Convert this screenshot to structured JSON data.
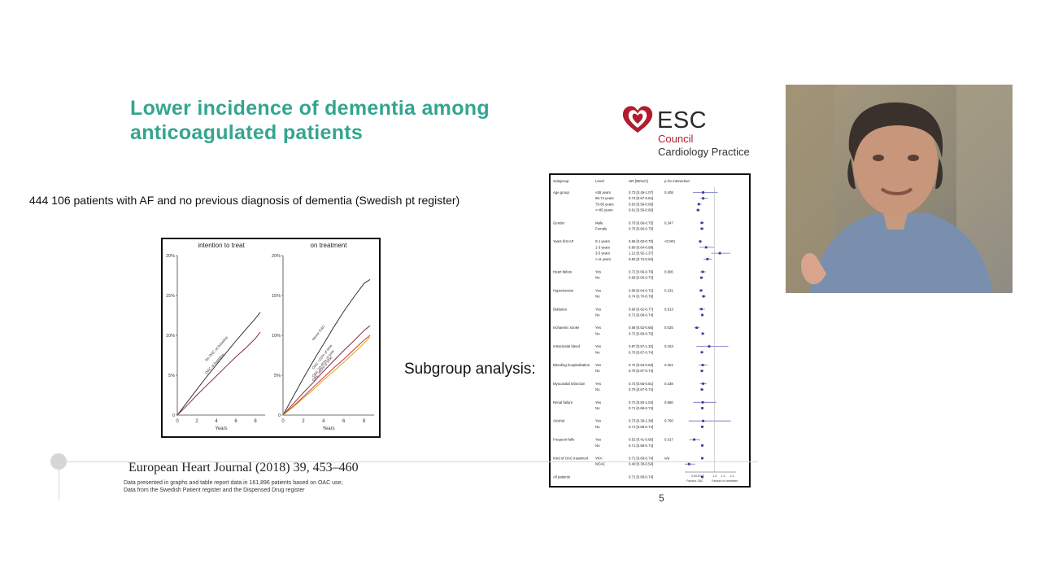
{
  "slide": {
    "title_line1": "Lower incidence of dementia among",
    "title_line2": "anticoagulated  patients",
    "patients_note": "444 106 patients with AF and no previous diagnosis of dementia (Swedish pt register)",
    "subgroup_label": "Subgroup analysis:",
    "citation": "European Heart Journal (2018) 39, 453–460",
    "footnote_line1": "Data presented in graphs and table report data in 161,896 patients based on OAC use;",
    "footnote_line2": "Data from the Swedish Patient register and the Dispensed Drug register",
    "page_number": "5",
    "colors": {
      "title": "#34a58f",
      "esc_red": "#b01d2e"
    }
  },
  "logo": {
    "word": "ESC",
    "line1": "Council",
    "line2": "Cardiology Practice",
    "icon": "heart-logo-icon"
  },
  "video": {
    "icon": "presenter-video-feed"
  },
  "chart_data": [
    {
      "type": "line",
      "title": "intention to treat",
      "xlabel": "Years",
      "xticks": [
        "0",
        "2",
        "4",
        "6",
        "8"
      ],
      "yticks": [
        "0",
        "5%",
        "10%",
        "15%",
        "20%"
      ],
      "xlim": [
        0,
        9
      ],
      "ylim": [
        0,
        20
      ],
      "series": [
        {
          "name": "No OAC at baseline",
          "color": "#333333",
          "x": [
            0,
            1,
            2,
            3,
            4,
            5,
            6,
            7,
            8,
            8.5
          ],
          "values": [
            0,
            1.6,
            3.2,
            4.8,
            6.3,
            7.8,
            9.3,
            10.7,
            12.1,
            12.9
          ]
        },
        {
          "name": "OAC at baseline",
          "color": "#8b2a3a",
          "x": [
            0,
            1,
            2,
            3,
            4,
            5,
            6,
            7,
            8,
            8.5
          ],
          "values": [
            0,
            1.2,
            2.5,
            3.7,
            4.9,
            6.1,
            7.3,
            8.4,
            9.6,
            10.4
          ]
        }
      ]
    },
    {
      "type": "line",
      "title": "on treatment",
      "xlabel": "Years",
      "xticks": [
        "0",
        "2",
        "4",
        "6",
        "8"
      ],
      "yticks": [
        "0",
        "5%",
        "10%",
        "15%",
        "20%"
      ],
      "xlim": [
        0,
        9
      ],
      "ylim": [
        0,
        20
      ],
      "series": [
        {
          "name": "Never OAC",
          "color": "#333333",
          "x": [
            0,
            1,
            2,
            3,
            4,
            5,
            6,
            7,
            8,
            8.6
          ],
          "values": [
            0,
            2.3,
            4.6,
            6.8,
            8.9,
            11,
            13,
            14.8,
            16.5,
            17
          ]
        },
        {
          "name": "OAC <20% of time",
          "color": "#8b2a3a",
          "x": [
            0,
            1,
            2,
            3,
            4,
            5,
            6,
            7,
            8,
            8.6
          ],
          "values": [
            0,
            1.4,
            2.8,
            4.1,
            5.5,
            6.8,
            8.1,
            9.3,
            10.6,
            11.2
          ]
        },
        {
          "name": "OAC 20-80% of time",
          "color": "#c0392b",
          "x": [
            0,
            1,
            2,
            3,
            4,
            5,
            6,
            7,
            8,
            8.6
          ],
          "values": [
            0,
            1.1,
            2.3,
            3.5,
            4.7,
            5.9,
            7,
            8.2,
            9.4,
            10
          ]
        },
        {
          "name": "OAC >80% of time",
          "color": "#d9a520",
          "x": [
            0,
            1,
            2,
            3,
            4,
            5,
            6,
            7,
            8,
            8.6
          ],
          "values": [
            0,
            1,
            2.1,
            3.2,
            4.4,
            5.5,
            6.6,
            7.8,
            9,
            9.8
          ]
        }
      ]
    }
  ],
  "forest": {
    "headers": [
      "Subgroup",
      "Level",
      "HR [95%CI]",
      "p for interaction"
    ],
    "axis_ticks": [
      "0.5",
      "0.6",
      "0.7",
      "1.0",
      "1.2",
      "1.4"
    ],
    "axis_labels": [
      "Favours OAC",
      "Favours no treatment"
    ],
    "xlim": [
      0.3,
      1.5
    ],
    "groups": [
      {
        "name": "Age group",
        "p": "0.408",
        "rows": [
          {
            "level": "<65 years",
            "hr": "0.73 [0.49-1.07]",
            "est": 0.73,
            "lo": 0.49,
            "hi": 1.07
          },
          {
            "level": "65-74 years",
            "hr": "0.73 [0.67-0.84]",
            "est": 0.73,
            "lo": 0.67,
            "hi": 0.84
          },
          {
            "level": "75-85 years",
            "hr": "0.63 [0.59-0.69]",
            "est": 0.63,
            "lo": 0.59,
            "hi": 0.69
          },
          {
            "level": ">=85 years",
            "hr": "0.61 [0.56-0.66]",
            "est": 0.61,
            "lo": 0.56,
            "hi": 0.66
          }
        ]
      },
      {
        "name": "Gender",
        "p": "0.347",
        "rows": [
          {
            "level": "Male",
            "hr": "0.70 [0.66-0.75]",
            "est": 0.7,
            "lo": 0.66,
            "hi": 0.75
          },
          {
            "level": "Female",
            "hr": "0.70 [0.66-0.75]",
            "est": 0.7,
            "lo": 0.66,
            "hi": 0.75
          }
        ]
      },
      {
        "name": "Years first AF",
        "p": "<0.001",
        "rows": [
          {
            "level": "0-1 years",
            "hr": "0.66 [0.63-0.70]",
            "est": 0.66,
            "lo": 0.63,
            "hi": 0.7
          },
          {
            "level": "1-3 years",
            "hr": "0.80 [0.64-0.99]",
            "est": 0.8,
            "lo": 0.64,
            "hi": 0.99
          },
          {
            "level": "3-5 years",
            "hr": "1.12 [0.92-1.37]",
            "est": 1.12,
            "lo": 0.92,
            "hi": 1.37
          },
          {
            "level": ">=5 years",
            "hr": "0.83 [0.74-0.94]",
            "est": 0.83,
            "lo": 0.74,
            "hi": 0.94
          }
        ]
      },
      {
        "name": "Heart failure",
        "p": "0.606",
        "rows": [
          {
            "level": "Yes",
            "hr": "0.72 [0.66-0.79]",
            "est": 0.72,
            "lo": 0.66,
            "hi": 0.79
          },
          {
            "level": "No",
            "hr": "0.69 [0.66-0.73]",
            "est": 0.69,
            "lo": 0.66,
            "hi": 0.73
          }
        ]
      },
      {
        "name": "Hypertension",
        "p": "0.231",
        "rows": [
          {
            "level": "Yes",
            "hr": "0.68 [0.64-0.72]",
            "est": 0.68,
            "lo": 0.64,
            "hi": 0.72
          },
          {
            "level": "No",
            "hr": "0.74 [0.70-0.79]",
            "est": 0.74,
            "lo": 0.7,
            "hi": 0.79
          }
        ]
      },
      {
        "name": "Diabetes",
        "p": "0.913",
        "rows": [
          {
            "level": "Yes",
            "hr": "0.69 [0.62-0.77]",
            "est": 0.69,
            "lo": 0.62,
            "hi": 0.77
          },
          {
            "level": "No",
            "hr": "0.71 [0.68-0.74]",
            "est": 0.71,
            "lo": 0.68,
            "hi": 0.74
          }
        ]
      },
      {
        "name": "Ischaemic stroke",
        "p": "0.025",
        "rows": [
          {
            "level": "Yes",
            "hr": "0.58 [0.52-0.65]",
            "est": 0.58,
            "lo": 0.52,
            "hi": 0.65
          },
          {
            "level": "No",
            "hr": "0.72 [0.69-0.76]",
            "est": 0.72,
            "lo": 0.69,
            "hi": 0.76
          }
        ]
      },
      {
        "name": "Intracranial bleed",
        "p": "0.153",
        "rows": [
          {
            "level": "Yes",
            "hr": "0.87 [0.57-1.32]",
            "est": 0.87,
            "lo": 0.57,
            "hi": 1.32
          },
          {
            "level": "No",
            "hr": "0.70 [0.67-0.74]",
            "est": 0.7,
            "lo": 0.67,
            "hi": 0.74
          }
        ]
      },
      {
        "name": "Bleeding hospitalization",
        "p": "0.201",
        "rows": [
          {
            "level": "Yes",
            "hr": "0.72 [0.63-0.83]",
            "est": 0.72,
            "lo": 0.63,
            "hi": 0.83
          },
          {
            "level": "No",
            "hr": "0.70 [0.67-0.74]",
            "est": 0.7,
            "lo": 0.67,
            "hi": 0.74
          }
        ]
      },
      {
        "name": "Myocardial infarction",
        "p": "0.338",
        "rows": [
          {
            "level": "Yes",
            "hr": "0.73 [0.65-0.81]",
            "est": 0.73,
            "lo": 0.65,
            "hi": 0.81
          },
          {
            "level": "No",
            "hr": "0.70 [0.67-0.74]",
            "est": 0.7,
            "lo": 0.67,
            "hi": 0.74
          }
        ]
      },
      {
        "name": "Renal failure",
        "p": "0.680",
        "rows": [
          {
            "level": "Yes",
            "hr": "0.72 [0.50-1.04]",
            "est": 0.72,
            "lo": 0.5,
            "hi": 1.04
          },
          {
            "level": "No",
            "hr": "0.71 [0.68-0.74]",
            "est": 0.71,
            "lo": 0.68,
            "hi": 0.74
          }
        ]
      },
      {
        "name": "Alcohol",
        "p": "0.760",
        "rows": [
          {
            "level": "Yes",
            "hr": "0.73 [0.39-1.38]",
            "est": 0.73,
            "lo": 0.39,
            "hi": 1.38
          },
          {
            "level": "No",
            "hr": "0.71 [0.68-0.74]",
            "est": 0.71,
            "lo": 0.68,
            "hi": 0.74
          }
        ]
      },
      {
        "name": "Frequent falls",
        "p": "0.317",
        "rows": [
          {
            "level": "Yes",
            "hr": "0.52 [0.41-0.66]",
            "est": 0.52,
            "lo": 0.41,
            "hi": 0.66
          },
          {
            "level": "No",
            "hr": "0.71 [0.68-0.74]",
            "est": 0.71,
            "lo": 0.68,
            "hi": 0.74
          }
        ]
      },
      {
        "name": "Kind of OAC treatment",
        "p": "n/a",
        "rows": [
          {
            "level": "VKA",
            "hr": "0.71 [0.68-0.74]",
            "est": 0.71,
            "lo": 0.68,
            "hi": 0.74
          },
          {
            "level": "NOAC",
            "hr": "0.40 [0.30-0.54]",
            "est": 0.4,
            "lo": 0.3,
            "hi": 0.54
          }
        ]
      },
      {
        "name": "All patients",
        "p": "",
        "rows": [
          {
            "level": "",
            "hr": "0.71 [0.68-0.74]",
            "est": 0.71,
            "lo": 0.68,
            "hi": 0.74
          }
        ]
      }
    ]
  }
}
